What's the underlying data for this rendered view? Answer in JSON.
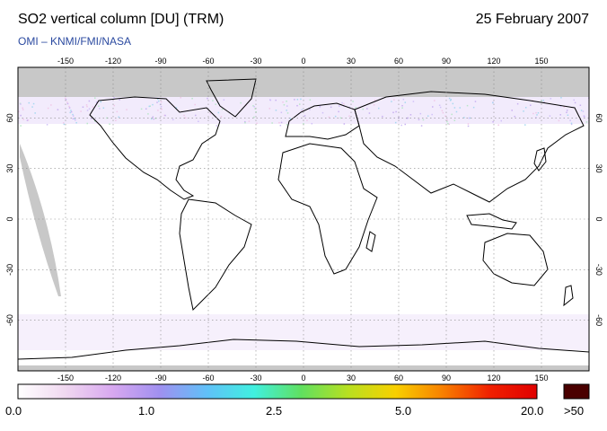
{
  "header": {
    "title": "SO2 vertical column [DU] (TRM)",
    "date": "25 February 2007",
    "subtitle": "OMI  –  KNMI/FMI/NASA"
  },
  "map": {
    "projection": "equirectangular",
    "lon_range": [
      -180,
      180
    ],
    "lat_range": [
      -90,
      90
    ],
    "lon_ticks": [
      "-150",
      "-120",
      "-90",
      "-60",
      "-30",
      "0",
      "30",
      "60",
      "90",
      "120",
      "150"
    ],
    "lat_ticks": [
      "60",
      "30",
      "0",
      "-30",
      "-60"
    ],
    "colors": {
      "land_outline": "#000000",
      "no_data": "#c8c8c8",
      "background": "#ffffff",
      "noise": "#d8c8f0",
      "grid": "#888888"
    }
  },
  "colorbar": {
    "labels": [
      "0.0",
      "1.0",
      "2.5",
      "5.0",
      "20.0",
      ">50"
    ],
    "over_color": "#4a0000",
    "gradient": [
      "#ffffff",
      "#f0d8f0",
      "#d8a8f0",
      "#a090f0",
      "#60c0f8",
      "#40f0e0",
      "#60e060",
      "#b8e020",
      "#f8d000",
      "#f88000",
      "#f02000",
      "#e00000"
    ]
  }
}
